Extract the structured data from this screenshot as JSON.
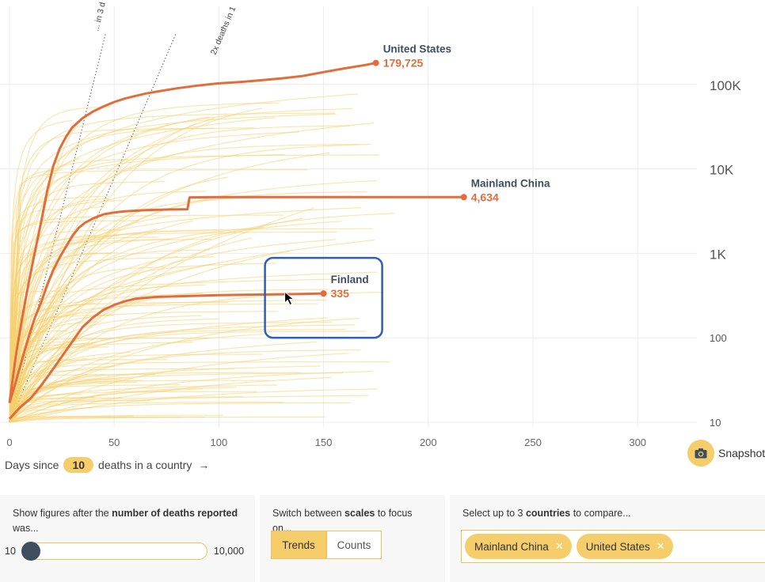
{
  "chart_data": {
    "type": "line",
    "xlabel_prefix": "Days since",
    "xlabel_threshold": "10",
    "xlabel_suffix": "deaths in a country",
    "xlabel_arrow": "→",
    "x_ticks": [
      "0",
      "50",
      "100",
      "150",
      "200",
      "250",
      "300"
    ],
    "xlim": [
      0,
      350
    ],
    "y_scale": "log",
    "ylim": [
      10,
      400000
    ],
    "y_ticks": [
      {
        "value": 100000,
        "label": "100K"
      },
      {
        "value": 10000,
        "label": "10K"
      },
      {
        "value": 1000,
        "label": "1K"
      },
      {
        "value": 100,
        "label": "100"
      },
      {
        "value": 10,
        "label": "10"
      }
    ],
    "doubling_lines": [
      {
        "label": "... in 3 d",
        "days": 3
      },
      {
        "label": "2x deaths in 1",
        "days": 5.2
      }
    ],
    "highlighted_series": [
      {
        "name": "United States",
        "value_label": "179,725",
        "points": [
          [
            0,
            17
          ],
          [
            3,
            60
          ],
          [
            6,
            170
          ],
          [
            9,
            430
          ],
          [
            12,
            1000
          ],
          [
            15,
            2300
          ],
          [
            18,
            5500
          ],
          [
            21,
            11000
          ],
          [
            24,
            17500
          ],
          [
            27,
            24000
          ],
          [
            30,
            31000
          ],
          [
            35,
            40000
          ],
          [
            40,
            48000
          ],
          [
            45,
            55000
          ],
          [
            50,
            62000
          ],
          [
            55,
            68000
          ],
          [
            60,
            73000
          ],
          [
            65,
            78000
          ],
          [
            70,
            82000
          ],
          [
            80,
            90000
          ],
          [
            90,
            97000
          ],
          [
            100,
            103000
          ],
          [
            110,
            107000
          ],
          [
            120,
            112000
          ],
          [
            130,
            118000
          ],
          [
            140,
            126000
          ],
          [
            150,
            140000
          ],
          [
            160,
            155000
          ],
          [
            170,
            170000
          ],
          [
            175,
            179725
          ]
        ]
      },
      {
        "name": "Mainland China",
        "value_label": "4,634",
        "points": [
          [
            0,
            17
          ],
          [
            3,
            30
          ],
          [
            6,
            55
          ],
          [
            9,
            100
          ],
          [
            12,
            170
          ],
          [
            15,
            260
          ],
          [
            18,
            420
          ],
          [
            21,
            640
          ],
          [
            24,
            900
          ],
          [
            27,
            1200
          ],
          [
            30,
            1600
          ],
          [
            33,
            2000
          ],
          [
            36,
            2300
          ],
          [
            40,
            2600
          ],
          [
            45,
            2900
          ],
          [
            50,
            3050
          ],
          [
            55,
            3150
          ],
          [
            65,
            3250
          ],
          [
            75,
            3300
          ],
          [
            85,
            3330
          ],
          [
            86,
            4600
          ],
          [
            100,
            4630
          ],
          [
            150,
            4634
          ],
          [
            200,
            4634
          ],
          [
            217,
            4634
          ]
        ]
      },
      {
        "name": "Finland",
        "value_label": "335",
        "points": [
          [
            0,
            11
          ],
          [
            5,
            15
          ],
          [
            10,
            19
          ],
          [
            15,
            27
          ],
          [
            20,
            40
          ],
          [
            25,
            60
          ],
          [
            30,
            90
          ],
          [
            35,
            135
          ],
          [
            40,
            175
          ],
          [
            45,
            215
          ],
          [
            50,
            245
          ],
          [
            55,
            270
          ],
          [
            60,
            290
          ],
          [
            70,
            305
          ],
          [
            80,
            310
          ],
          [
            90,
            315
          ],
          [
            100,
            320
          ],
          [
            120,
            325
          ],
          [
            140,
            330
          ],
          [
            150,
            335
          ]
        ]
      }
    ]
  },
  "annotation": {
    "highlighted_country": "Finland"
  },
  "snapshot": {
    "label": "Snapshot",
    "icon": "camera-icon"
  },
  "controls": {
    "deaths_filter": {
      "text_prefix": "Show figures after the",
      "text_bold": "number of deaths reported",
      "text_suffix": "was...",
      "min_label": "10",
      "max_label": "10,000",
      "value": 10
    },
    "scales": {
      "text_prefix": "Switch between",
      "text_bold": "scales",
      "text_suffix": "to focus on...",
      "options": [
        "Trends",
        "Counts"
      ],
      "selected": "Trends"
    },
    "countries": {
      "text_prefix": "Select up to 3",
      "text_bold": "countries",
      "text_suffix": "to compare...",
      "selected": [
        "Mainland China",
        "United States"
      ]
    }
  },
  "colors": {
    "highlight": "#e06d3b",
    "background_lines": "#f5cf6d",
    "grid": "#ececec",
    "label_dark": "#3f4e5e",
    "annotation_box": "#2f5fb8",
    "doubling_lines": "#555555",
    "accent": "#f6cd6b"
  }
}
